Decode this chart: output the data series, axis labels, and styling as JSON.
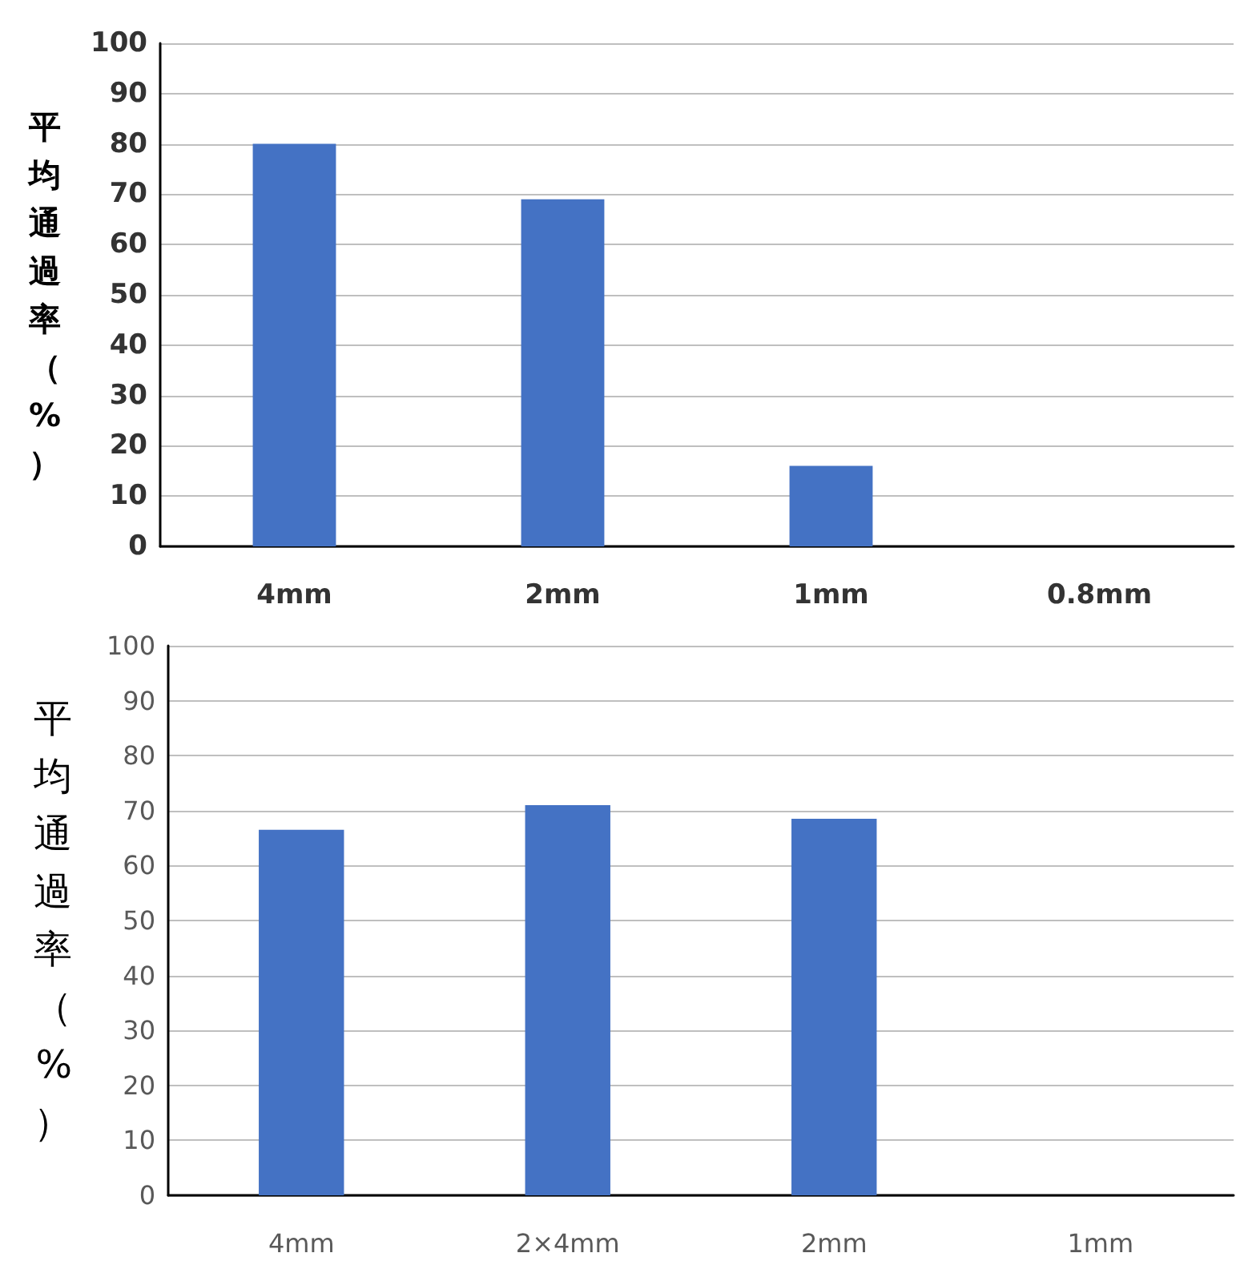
{
  "chart_data": [
    {
      "type": "bar",
      "ylabel": "平均通過率（%）",
      "categories": [
        "4mm",
        "2mm",
        "1mm",
        "0.8mm"
      ],
      "color": "#4472c4",
      "values": [
        80,
        69,
        16,
        0
      ],
      "ylim": [
        0,
        100
      ],
      "yticks": [
        0,
        10,
        20,
        30,
        40,
        50,
        60,
        70,
        80,
        90,
        100
      ],
      "grid": "y"
    },
    {
      "type": "bar",
      "ylabel": "平均通過率（%）",
      "categories": [
        "4mm",
        "2×4mm",
        "2mm",
        "1mm"
      ],
      "color": "#4472c4",
      "values": [
        66.5,
        71,
        68.5,
        0
      ],
      "ylim": [
        0,
        100
      ],
      "yticks": [
        0,
        10,
        20,
        30,
        40,
        50,
        60,
        70,
        80,
        90,
        100
      ],
      "grid": "y"
    }
  ]
}
